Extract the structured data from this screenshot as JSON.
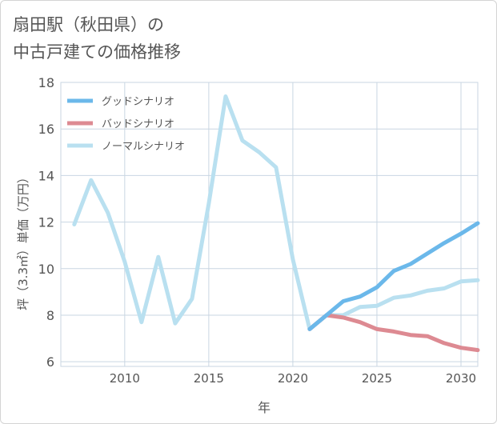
{
  "title": {
    "line1": "扇田駅（秋田県）の",
    "line2": "中古戸建ての価格推移"
  },
  "chart_data": {
    "type": "line",
    "xlabel": "年",
    "ylabel": "坪（3.3㎡）単価（万円）",
    "xlim": [
      2006.2,
      2031
    ],
    "ylim": [
      5.8,
      18
    ],
    "xticks": [
      2010,
      2015,
      2020,
      2025,
      2030
    ],
    "yticks": [
      6,
      8,
      10,
      12,
      14,
      16,
      18
    ],
    "grid": true,
    "legend_position": "top-left",
    "series": [
      {
        "name": "グッドシナリオ",
        "color": "#6bb8ea",
        "x": [
          2021,
          2022,
          2023,
          2024,
          2025,
          2026,
          2027,
          2028,
          2029,
          2030,
          2031
        ],
        "values": [
          7.4,
          8.0,
          8.6,
          8.8,
          9.2,
          9.9,
          10.2,
          10.65,
          11.1,
          11.5,
          11.95
        ]
      },
      {
        "name": "バッドシナリオ",
        "color": "#dd8a92",
        "x": [
          2021,
          2022,
          2023,
          2024,
          2025,
          2026,
          2027,
          2028,
          2029,
          2030,
          2031
        ],
        "values": [
          7.4,
          8.0,
          7.9,
          7.7,
          7.4,
          7.3,
          7.15,
          7.1,
          6.8,
          6.6,
          6.5
        ]
      },
      {
        "name": "ノーマルシナリオ",
        "color": "#b9e0f0",
        "x": [
          2007,
          2008,
          2009,
          2010,
          2011,
          2012,
          2013,
          2014,
          2015,
          2016,
          2017,
          2018,
          2019,
          2020,
          2021,
          2022,
          2023,
          2024,
          2025,
          2026,
          2027,
          2028,
          2029,
          2030,
          2031
        ],
        "values": [
          11.9,
          13.8,
          12.4,
          10.3,
          7.7,
          10.5,
          7.65,
          8.7,
          12.8,
          17.4,
          15.5,
          15.0,
          14.35,
          10.4,
          7.4,
          8.0,
          8.0,
          8.35,
          8.4,
          8.75,
          8.85,
          9.05,
          9.15,
          9.45,
          9.5
        ]
      }
    ]
  }
}
